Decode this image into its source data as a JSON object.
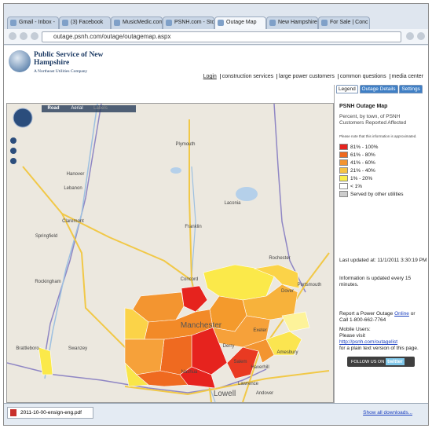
{
  "browser": {
    "tabs": [
      "Gmail - Inbox -",
      "(3) Facebook",
      "MusicMedic.com",
      "PSNH.com - Sto",
      "Outage Map",
      "New Hampshire",
      "For Sale | Conc"
    ],
    "address": "outage.psnh.com/outage/outagemap.aspx"
  },
  "header": {
    "logo_title": "Public Service of New Hampshire",
    "logo_subtitle": "A Northeast Utilities Company",
    "nav": [
      "Login",
      "construction services",
      "large power customers",
      "common questions",
      "media center"
    ]
  },
  "map": {
    "controls": [
      "Road",
      "Aerial",
      "Labels"
    ],
    "places": [
      "Hanover",
      "Lebanon",
      "Claremont",
      "Springfield",
      "Rockingham",
      "Brattleboro",
      "Plymouth",
      "Laconia",
      "Franklin",
      "Concord",
      "Manchester",
      "Rochester",
      "Dover",
      "Portsmouth",
      "Exeter",
      "Derry",
      "Salem",
      "Haverhill",
      "Amesbury",
      "Nashua",
      "Lawrence",
      "Lowell",
      "Andover",
      "Swanzey"
    ]
  },
  "panel": {
    "tabs": [
      "Legend",
      "Outage Details",
      "Settings"
    ],
    "title": "PSNH Outage Map",
    "subtitle": "Percent, by town, of PSNH Customers Reported Affected",
    "note": "Please note that this information is approximated.",
    "legend": [
      "81% - 100%",
      "61% - 80%",
      "41% - 60%",
      "21% - 40%",
      "1% - 20%",
      "< 1%",
      "Served by other utilities"
    ],
    "last_updated": "Last updated at: 11/1/2011 3:30:19 PM",
    "update_info": "Information is updated every 15 minutes.",
    "report": {
      "text": "Report a Power Outage",
      "link": "Online",
      "or": "or",
      "call": "Call 1-800-662-7764"
    },
    "mobile": {
      "line1": "Mobile Users:",
      "line2": "Please visit",
      "link": "http://psnh.com/outagelist",
      "line3": "for a plain text version of this page."
    },
    "twitter": {
      "prefix": "FOLLOW US ON",
      "brand": "twitter"
    }
  },
  "downloads": {
    "file": "2011-10-00-ensign-eng.pdf",
    "show_all": "Show all downloads..."
  }
}
